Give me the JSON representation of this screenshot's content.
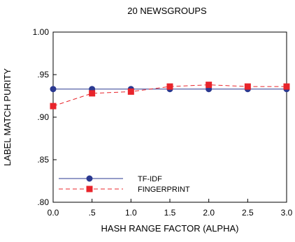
{
  "chart_data": {
    "type": "line",
    "title": "20 NEWSGROUPS",
    "xlabel": "HASH RANGE FACTOR (ALPHA)",
    "ylabel": "LABEL MATCH PURITY",
    "xlim": [
      0.0,
      3.0
    ],
    "ylim": [
      0.8,
      1.0
    ],
    "x_ticks": [
      0.0,
      0.5,
      1.0,
      1.5,
      2.0,
      2.5,
      3.0
    ],
    "x_tick_labels": [
      "0.0",
      ".5",
      "1.0",
      "1.5",
      "2.0",
      "2.5",
      "3.0"
    ],
    "y_ticks": [
      0.8,
      0.85,
      0.9,
      0.95,
      1.0
    ],
    "y_tick_labels": [
      ".80",
      ".85",
      ".90",
      ".95",
      "1.00"
    ],
    "grid": false,
    "legend_position": "lower-left",
    "x": [
      0.0,
      0.5,
      1.0,
      1.5,
      2.0,
      2.5,
      3.0
    ],
    "series": [
      {
        "name": "TF-IDF",
        "values": [
          0.933,
          0.933,
          0.933,
          0.933,
          0.933,
          0.933,
          0.933
        ],
        "color": "#2b3990",
        "line_style": "solid",
        "marker": "circle"
      },
      {
        "name": "FINGERPRINT",
        "values": [
          0.913,
          0.928,
          0.93,
          0.936,
          0.938,
          0.936,
          0.936
        ],
        "color": "#e8242b",
        "line_style": "dashed",
        "marker": "square"
      }
    ]
  }
}
